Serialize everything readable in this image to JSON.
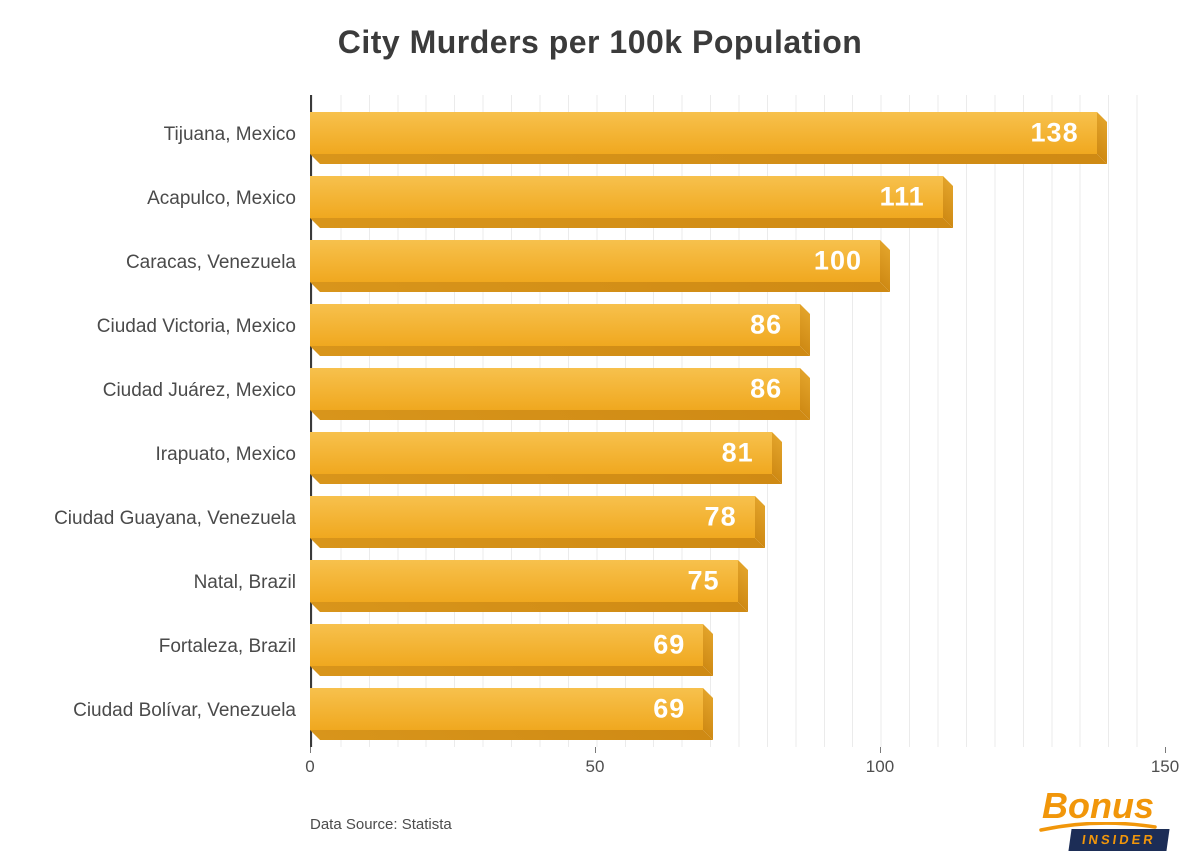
{
  "title": "City Murders per 100k Population",
  "source_note": "Data Source: Statista",
  "logo": {
    "name": "Bonus",
    "sub": "INSIDER"
  },
  "chart_data": {
    "type": "bar",
    "orientation": "horizontal",
    "title": "City Murders per 100k Population",
    "categories": [
      "Tijuana, Mexico",
      "Acapulco, Mexico",
      "Caracas, Venezuela",
      "Ciudad Victoria, Mexico",
      "Ciudad Juárez, Mexico",
      "Irapuato, Mexico",
      "Ciudad Guayana, Venezuela",
      "Natal, Brazil",
      "Fortaleza, Brazil",
      "Ciudad Bolívar, Venezuela"
    ],
    "values": [
      138,
      111,
      100,
      86,
      86,
      81,
      78,
      75,
      69,
      69
    ],
    "xlabel": "",
    "ylabel": "",
    "xlim": [
      0,
      150
    ],
    "xticks": [
      0,
      50,
      100,
      150
    ],
    "grid": true,
    "gridline_interval": 5,
    "legend": "none",
    "colors": {
      "bar_top": "#f7c14d",
      "bar_main": "#f0a81f",
      "bar_shadow": "#cf8a14",
      "value_label": "#ffffff",
      "title_text": "#3b3b3b",
      "logo_orange": "#f1960a",
      "logo_navy": "#1c2d56"
    }
  }
}
